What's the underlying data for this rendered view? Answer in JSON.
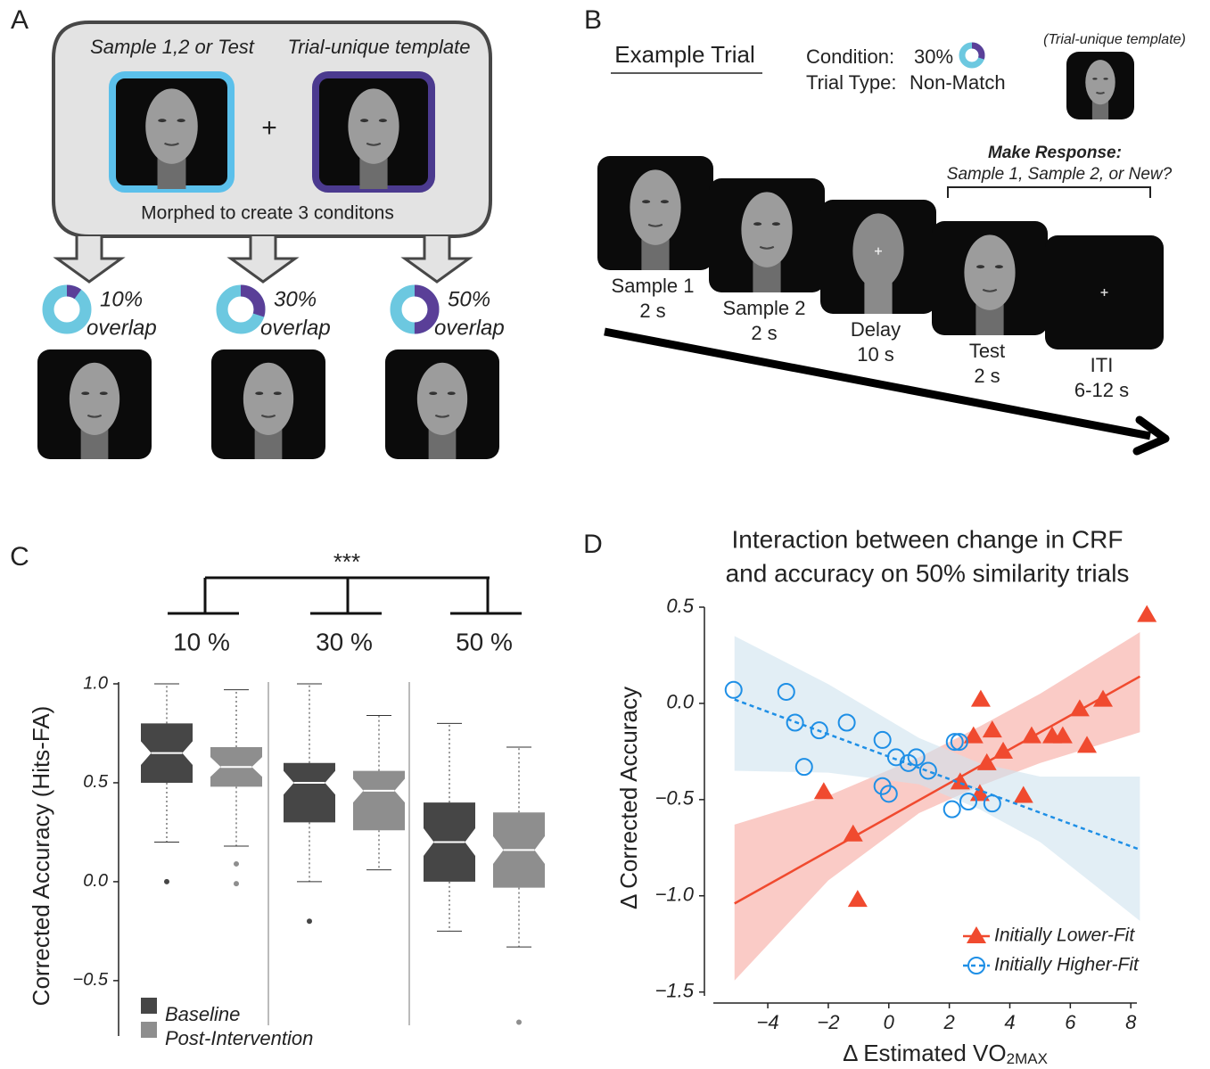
{
  "panel_a": {
    "label": "A",
    "sample_label": "Sample 1,2 or Test",
    "template_label": "Trial-unique template",
    "plus": "+",
    "morph_text": "Morphed to create 3 conditons",
    "conditions": [
      {
        "value": 10,
        "label": "10%"
      },
      {
        "value": 30,
        "label": "30%"
      },
      {
        "value": 50,
        "label": "50%"
      }
    ],
    "overlap_text": "overlap"
  },
  "panel_b": {
    "label": "B",
    "example_trial": "Example Trial",
    "condition_label": "Condition:",
    "condition": {
      "value": 30,
      "label": "30%"
    },
    "trial_type_label": "Trial Type:",
    "trial_type": "Non-Match",
    "template_note": "(Trial-unique template)",
    "response_title": "Make Response:",
    "response_options": "Sample 1, Sample 2, or New?",
    "steps": [
      {
        "name": "Sample 1",
        "duration": "2 s"
      },
      {
        "name": "Sample 2",
        "duration": "2 s"
      },
      {
        "name": "Delay",
        "duration": "10 s"
      },
      {
        "name": "Test",
        "duration": "2 s"
      },
      {
        "name": "ITI",
        "duration": "6-12 s"
      }
    ]
  },
  "chart_data": [
    {
      "type": "box",
      "panel": "C",
      "ylabel": "Corrected Accuracy (Hits-FA)",
      "categories": [
        "10 %",
        "30 %",
        "50 %"
      ],
      "significance": "***",
      "ylim": [
        -0.78,
        1.0
      ],
      "yticks": [
        {
          "value": 1.0,
          "label": "1.0"
        },
        {
          "value": 0.5,
          "label": "0.5"
        },
        {
          "value": 0.0,
          "label": "0.0"
        },
        {
          "value": -0.5,
          "label": "−0.5"
        }
      ],
      "legend": "lower left",
      "series": [
        {
          "name": "Baseline",
          "color": "#464646",
          "boxes": [
            {
              "whislo": 0.2,
              "q1": 0.5,
              "med": 0.65,
              "q3": 0.8,
              "whishi": 1.0,
              "notch": [
                0.59,
                0.71
              ],
              "fliers": [
                0.0
              ]
            },
            {
              "whislo": 0.0,
              "q1": 0.3,
              "med": 0.5,
              "q3": 0.6,
              "whishi": 1.0,
              "notch": [
                0.44,
                0.56
              ],
              "fliers": [
                -0.2
              ]
            },
            {
              "whislo": -0.25,
              "q1": 0.0,
              "med": 0.2,
              "q3": 0.4,
              "whishi": 0.8,
              "notch": [
                0.13,
                0.27
              ],
              "fliers": []
            }
          ]
        },
        {
          "name": "Post-Intervention",
          "color": "#8e8e8e",
          "boxes": [
            {
              "whislo": 0.18,
              "q1": 0.48,
              "med": 0.58,
              "q3": 0.68,
              "whishi": 0.97,
              "notch": [
                0.53,
                0.63
              ],
              "fliers": [
                0.09,
                -0.01
              ]
            },
            {
              "whislo": 0.06,
              "q1": 0.26,
              "med": 0.46,
              "q3": 0.56,
              "whishi": 0.84,
              "notch": [
                0.4,
                0.52
              ],
              "fliers": []
            },
            {
              "whislo": -0.33,
              "q1": -0.03,
              "med": 0.16,
              "q3": 0.35,
              "whishi": 0.68,
              "notch": [
                0.09,
                0.23
              ],
              "fliers": [
                -0.71
              ]
            }
          ]
        }
      ]
    },
    {
      "type": "scatter",
      "panel": "D",
      "title": [
        "Interaction between change in CRF",
        "and accuracy on 50% similarity trials"
      ],
      "xlabel": "Δ Estimated VO",
      "xlabel_sub": "2MAX",
      "ylabel": "Δ Corrected Accuracy",
      "xlim": [
        -5.8,
        8.2
      ],
      "ylim": [
        -1.52,
        0.5
      ],
      "xticks": [
        {
          "value": -4,
          "label": "−4"
        },
        {
          "value": -2,
          "label": "−2"
        },
        0,
        2,
        4,
        6,
        8
      ],
      "yticks": [
        0.5,
        {
          "value": 0.0,
          "label": "0.0"
        },
        {
          "value": -0.5,
          "label": "−0.5"
        },
        {
          "value": -1.0,
          "label": "−1.0"
        },
        {
          "value": -1.5,
          "label": "−1.5"
        }
      ],
      "legend": "lower right",
      "series": [
        {
          "name": "Initially Lower-Fit",
          "color": "#f04a2f",
          "band_color": "#f7a9a0",
          "marker": "triangle",
          "line_style": "solid",
          "x": [
            -2.15,
            -1.18,
            -1.03,
            2.36,
            2.8,
            3.04,
            3.42,
            3.24,
            3.78,
            3.01,
            4.45,
            4.72,
            5.4,
            5.75,
            6.31,
            6.55,
            7.08,
            8.53
          ],
          "y": [
            -0.46,
            -0.68,
            -1.02,
            -0.41,
            -0.17,
            0.02,
            -0.14,
            -0.31,
            -0.25,
            -0.47,
            -0.48,
            -0.17,
            -0.17,
            -0.17,
            -0.03,
            -0.22,
            0.02,
            0.46
          ],
          "fit": {
            "x": [
              -5.1,
              8.3
            ],
            "y": [
              -1.04,
              0.14
            ]
          },
          "band": {
            "x": [
              -5.1,
              -2,
              1,
              3,
              5,
              8.3
            ],
            "lower": [
              -1.44,
              -0.92,
              -0.57,
              -0.43,
              -0.31,
              -0.15
            ],
            "upper": [
              -0.63,
              -0.48,
              -0.28,
              -0.12,
              0.05,
              0.37
            ]
          }
        },
        {
          "name": "Initially Higher-Fit",
          "color": "#1e8fe6",
          "band_color": "#cfe3ee",
          "marker": "circle",
          "line_style": "dashed",
          "x": [
            -5.13,
            -3.39,
            -3.1,
            -2.3,
            -2.8,
            -1.39,
            -0.21,
            -0.21,
            0.0,
            0.24,
            0.65,
            0.91,
            1.3,
            2.18,
            2.33,
            2.09,
            2.63,
            3.42
          ],
          "y": [
            0.07,
            0.06,
            -0.1,
            -0.14,
            -0.33,
            -0.1,
            -0.19,
            -0.43,
            -0.47,
            -0.28,
            -0.31,
            -0.28,
            -0.35,
            -0.2,
            -0.2,
            -0.55,
            -0.51,
            -0.52
          ],
          "fit": {
            "x": [
              -5.1,
              8.3
            ],
            "y": [
              0.02,
              -0.76
            ]
          },
          "band": {
            "x": [
              -5.1,
              -2,
              1,
              3,
              5,
              8.3
            ],
            "lower": [
              -0.35,
              -0.36,
              -0.42,
              -0.55,
              -0.72,
              -1.13
            ],
            "upper": [
              0.35,
              0.1,
              -0.18,
              -0.31,
              -0.38,
              -0.38
            ]
          }
        }
      ]
    }
  ]
}
